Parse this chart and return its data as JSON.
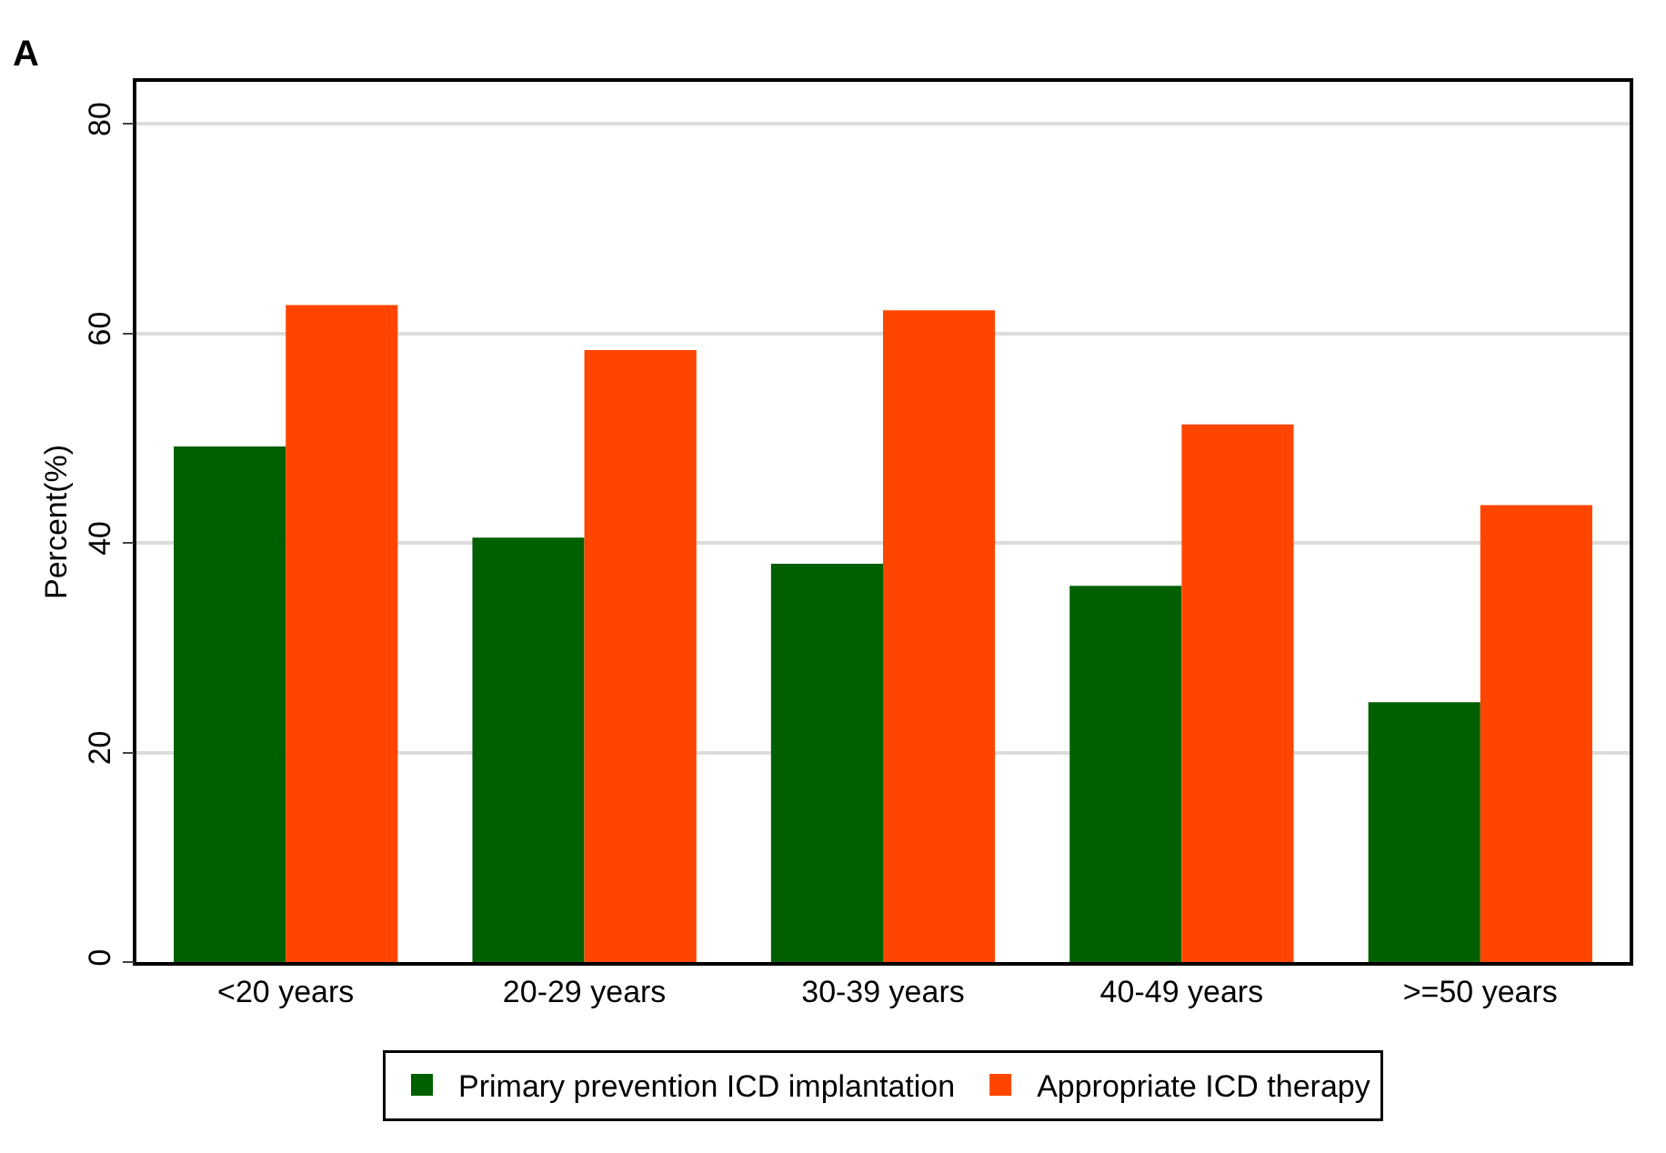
{
  "chart_data": {
    "type": "bar",
    "ylabel": "Percent(%)",
    "annotations": [
      "A"
    ],
    "categories": [
      "<20 years",
      "20-29 years",
      "30-39 years",
      "40-49 years",
      ">=50 years"
    ],
    "series": [
      {
        "name": "Primary prevention ICD implantation",
        "color": "#005f00",
        "values": [
          49.2,
          40.5,
          38.0,
          35.9,
          24.8
        ]
      },
      {
        "name": "Appropriate ICD therapy",
        "color": "#ff4500",
        "values": [
          62.7,
          58.4,
          62.2,
          51.3,
          43.6
        ]
      }
    ],
    "ylim": [
      0,
      84
    ],
    "yticks": [
      0,
      20,
      40,
      60,
      80
    ],
    "grid": "y",
    "legend": "bottom"
  }
}
